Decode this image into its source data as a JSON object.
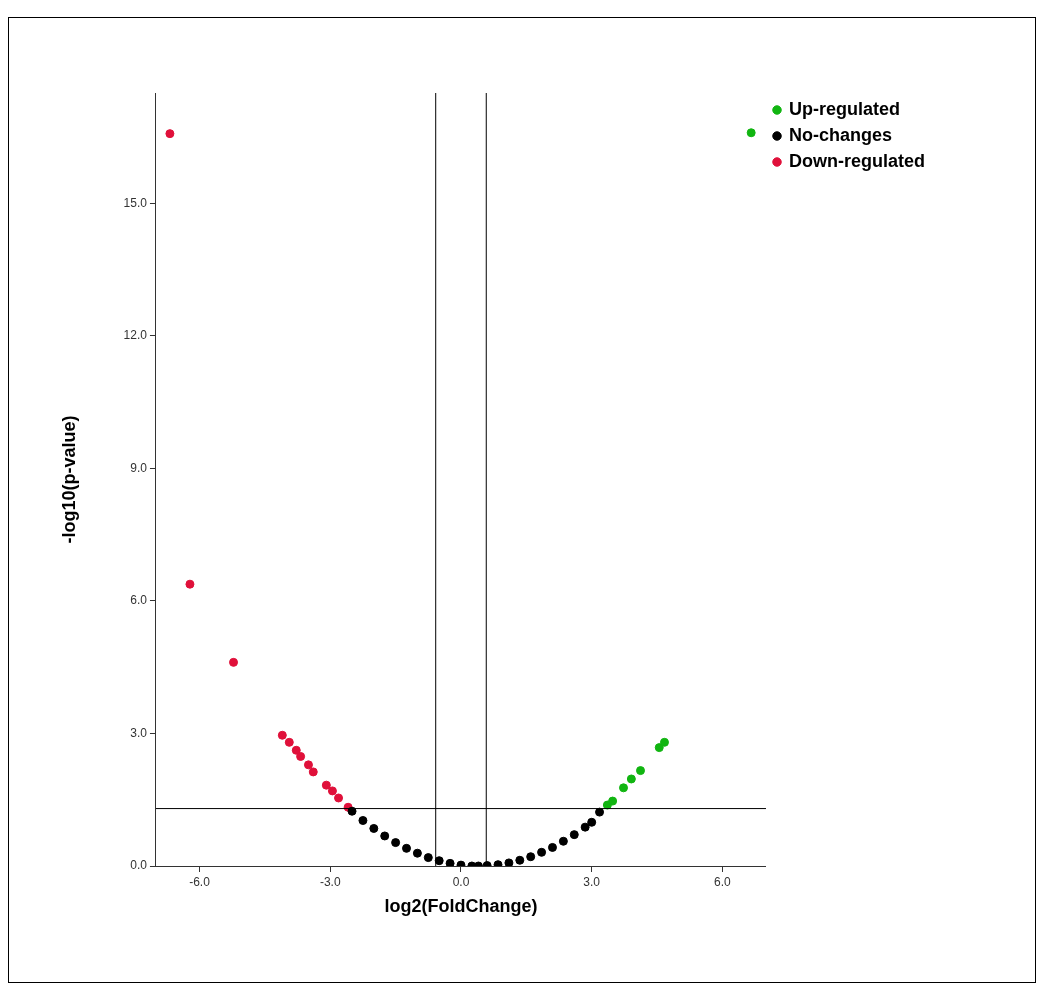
{
  "chart_data": {
    "type": "scatter",
    "xlabel": "log2(FoldChange)",
    "ylabel": "-log10(p-value)",
    "xlim": [
      -7,
      7
    ],
    "ylim": [
      0,
      17.5
    ],
    "xticks": [
      {
        "value": -6,
        "label": "-6.0"
      },
      {
        "value": -3,
        "label": "-3.0"
      },
      {
        "value": 0,
        "label": "0.0"
      },
      {
        "value": 3,
        "label": "3.0"
      },
      {
        "value": 6,
        "label": "6.0"
      }
    ],
    "yticks": [
      {
        "value": 0,
        "label": "0.0"
      },
      {
        "value": 3,
        "label": "3.0"
      },
      {
        "value": 6,
        "label": "6.0"
      },
      {
        "value": 9,
        "label": "9.0"
      },
      {
        "value": 12,
        "label": "12.0"
      },
      {
        "value": 15,
        "label": "15.0"
      }
    ],
    "grid": false,
    "legend": "right",
    "marker": "circle",
    "ref_lines": [
      {
        "axis": "x",
        "value": -0.58
      },
      {
        "axis": "x",
        "value": 0.58
      },
      {
        "axis": "y",
        "value": 1.3
      }
    ],
    "series": [
      {
        "name": "Up-regulated",
        "color": "#11b511",
        "x": [
          3.36,
          3.48,
          3.73,
          3.91,
          4.12,
          4.55,
          4.67,
          6.66
        ],
        "values": [
          1.38,
          1.47,
          1.77,
          1.97,
          2.16,
          2.68,
          2.8,
          16.6
        ]
      },
      {
        "name": "No-changes",
        "color": "#000000",
        "x": [
          -2.5,
          -2.25,
          -2.0,
          -1.75,
          -1.5,
          -1.25,
          -1.0,
          -0.75,
          -0.5,
          -0.25,
          0,
          0.25,
          0.4,
          0.6,
          0.85,
          1.1,
          1.35,
          1.6,
          1.85,
          2.1,
          2.35,
          2.6,
          2.85,
          3.0,
          3.18
        ],
        "values": [
          1.24,
          1.03,
          0.85,
          0.68,
          0.53,
          0.4,
          0.29,
          0.19,
          0.12,
          0.06,
          0.02,
          0.0,
          0.0,
          0.01,
          0.03,
          0.07,
          0.13,
          0.21,
          0.31,
          0.42,
          0.56,
          0.71,
          0.88,
          0.99,
          1.22
        ]
      },
      {
        "name": "Down-regulated",
        "color": "#e0103a",
        "x": [
          -6.68,
          -6.22,
          -5.22,
          -4.1,
          -3.94,
          -3.78,
          -3.68,
          -3.5,
          -3.39,
          -3.09,
          -2.95,
          -2.81,
          -2.59
        ],
        "values": [
          16.58,
          6.38,
          4.61,
          2.96,
          2.8,
          2.62,
          2.48,
          2.29,
          2.13,
          1.83,
          1.7,
          1.54,
          1.33
        ]
      }
    ]
  }
}
